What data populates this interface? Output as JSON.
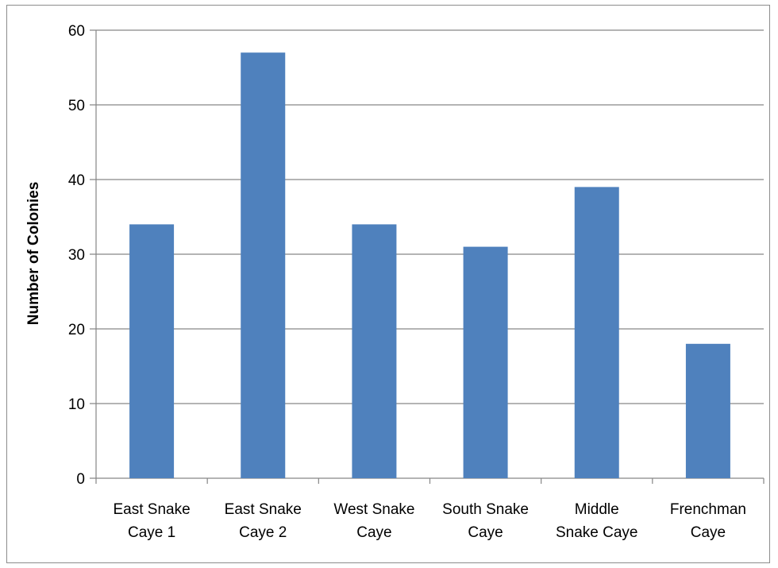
{
  "chart_data": {
    "type": "bar",
    "title": "",
    "xlabel": "",
    "ylabel": "Number of Colonies",
    "ylim": [
      0,
      60
    ],
    "yticks": [
      0,
      10,
      20,
      30,
      40,
      50,
      60
    ],
    "grid": true,
    "legend": "none",
    "bar_color": "#4F81BD",
    "categories": [
      [
        "East Snake",
        "Caye 1"
      ],
      [
        "East Snake",
        "Caye 2"
      ],
      [
        "West Snake",
        "Caye"
      ],
      [
        "South Snake",
        "Caye"
      ],
      [
        "Middle",
        "Snake Caye"
      ],
      [
        "Frenchman",
        "Caye"
      ]
    ],
    "values": [
      34,
      57,
      34,
      31,
      39,
      18
    ]
  }
}
